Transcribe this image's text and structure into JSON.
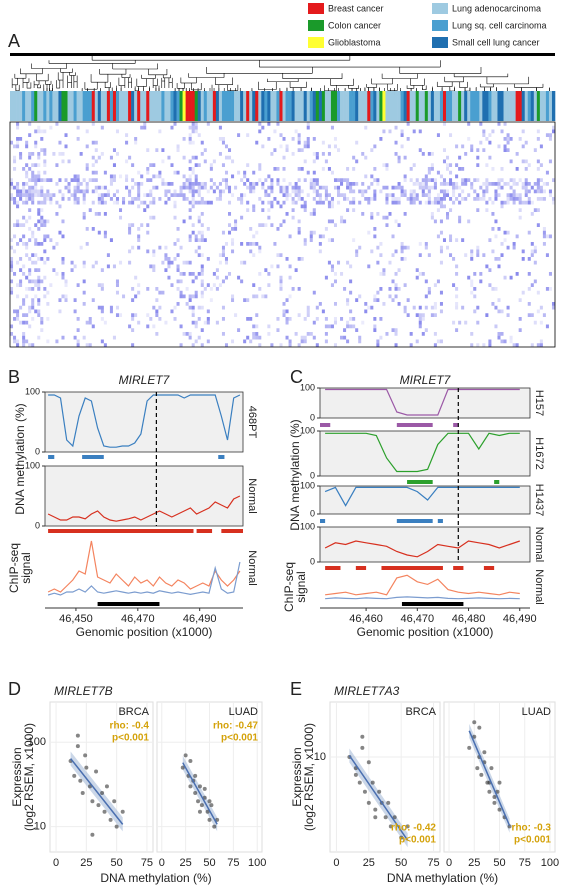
{
  "chart_data": [
    {
      "type": "heatmap",
      "panel": "A",
      "legend": [
        {
          "name": "Breast cancer",
          "color": "#e41a1c"
        },
        {
          "name": "Colon cancer",
          "color": "#1a9a2a"
        },
        {
          "name": "Glioblastoma",
          "color": "#ffff33"
        },
        {
          "name": "Lung adenocarcinoma",
          "color": "#9ecae1"
        },
        {
          "name": "Lung sq. cell carcinoma",
          "color": "#4a9fd0"
        },
        {
          "name": "Small cell lung cancer",
          "color": "#1f6fb0"
        }
      ]
    },
    {
      "type": "tracks",
      "panel": "B",
      "title": "MIRLET7",
      "ylabel": "DNA methylation (%)",
      "chip_label": [
        "ChIP-seq",
        "signal"
      ],
      "xlabel": "Genomic position (x1000)",
      "xlim": [
        46440,
        46504
      ],
      "xticks": [
        {
          "value": 46450,
          "label": "46,450"
        },
        {
          "value": 46470,
          "label": "46,470"
        },
        {
          "value": 46490,
          "label": "46,490"
        }
      ],
      "ylim": [
        0,
        100
      ],
      "yticks": [
        0,
        100
      ],
      "dashed_x": 46476,
      "x": [
        46441,
        46443,
        46445,
        46447,
        46449,
        46451,
        46453,
        46455,
        46457,
        46459,
        46461,
        46463,
        46465,
        46467,
        46469,
        46471,
        46473,
        46475,
        46477,
        46479,
        46481,
        46483,
        46485,
        46487,
        46489,
        46491,
        46493,
        46495,
        46497,
        46499,
        46501,
        46503
      ],
      "tracks": [
        {
          "name": "468PT",
          "color": "#3a7fc0",
          "values": [
            95,
            95,
            90,
            20,
            10,
            60,
            90,
            85,
            40,
            10,
            8,
            8,
            10,
            10,
            15,
            30,
            85,
            95,
            95,
            95,
            95,
            95,
            90,
            95,
            95,
            95,
            95,
            95,
            60,
            20,
            90,
            95
          ],
          "regions": [
            [
              46441,
              46443
            ],
            [
              46452,
              46459
            ],
            [
              46496,
              46498
            ]
          ]
        },
        {
          "name": "Normal",
          "color": "#d7301f",
          "values": [
            20,
            15,
            10,
            10,
            15,
            15,
            12,
            20,
            25,
            15,
            10,
            8,
            10,
            12,
            15,
            10,
            15,
            20,
            25,
            20,
            15,
            20,
            25,
            30,
            20,
            25,
            30,
            40,
            35,
            30,
            45,
            50
          ],
          "regions": [
            [
              46441,
              46488
            ],
            [
              46489,
              46494
            ],
            [
              46497,
              46504
            ]
          ]
        }
      ],
      "chip": {
        "name": "Normal",
        "region": [
          46457,
          46477
        ],
        "series": [
          {
            "color": "#f4845f",
            "values": [
              10,
              15,
              10,
              20,
              30,
              45,
              40,
              95,
              35,
              30,
              25,
              40,
              30,
              20,
              35,
              25,
              30,
              20,
              35,
              25,
              20,
              30,
              25,
              15,
              20,
              25,
              20,
              45,
              30,
              20,
              30,
              45
            ]
          },
          {
            "color": "#7b9ccf",
            "values": [
              5,
              8,
              5,
              10,
              10,
              15,
              10,
              20,
              10,
              8,
              10,
              12,
              10,
              8,
              10,
              8,
              10,
              8,
              12,
              10,
              8,
              10,
              8,
              6,
              8,
              10,
              8,
              50,
              15,
              8,
              10,
              60
            ]
          }
        ]
      }
    },
    {
      "type": "tracks",
      "panel": "C",
      "title": "MIRLET7",
      "ylabel": "DNA methylation (%)",
      "chip_label": [
        "ChIP-seq",
        "signal"
      ],
      "xlabel": "Genomic position (x1000)",
      "xlim": [
        46451,
        46492
      ],
      "xticks": [
        {
          "value": 46460,
          "label": "46,460"
        },
        {
          "value": 46470,
          "label": "46,470"
        },
        {
          "value": 46480,
          "label": "46,480"
        },
        {
          "value": 46490,
          "label": "46,490"
        }
      ],
      "ylim": [
        0,
        100
      ],
      "yticks": [
        0,
        100
      ],
      "dashed_x": 46478,
      "x": [
        46452,
        46454,
        46456,
        46458,
        46460,
        46462,
        46464,
        46466,
        46468,
        46470,
        46472,
        46474,
        46476,
        46478,
        46480,
        46482,
        46484,
        46486,
        46488,
        46490
      ],
      "tracks": [
        {
          "name": "H157",
          "color": "#9b59a6",
          "values": [
            95,
            95,
            95,
            95,
            95,
            95,
            95,
            20,
            10,
            10,
            10,
            10,
            95,
            95,
            95,
            95,
            95,
            95,
            95,
            95
          ],
          "regions": [
            [
              46451,
              46453
            ],
            [
              46466,
              46473
            ],
            [
              46477,
              46478
            ]
          ]
        },
        {
          "name": "H1672",
          "color": "#2ca02c",
          "values": [
            95,
            95,
            95,
            95,
            95,
            90,
            40,
            10,
            10,
            10,
            15,
            70,
            95,
            95,
            95,
            60,
            95,
            90,
            95,
            95
          ],
          "regions": [
            [
              46468,
              46473
            ],
            [
              46485,
              46486
            ]
          ]
        },
        {
          "name": "H1437",
          "color": "#3a7fc0",
          "values": [
            80,
            95,
            30,
            95,
            95,
            95,
            95,
            95,
            95,
            80,
            50,
            95,
            95,
            95,
            95,
            95,
            95,
            95,
            95,
            95
          ],
          "regions": [
            [
              46451,
              46452
            ],
            [
              46466,
              46473
            ],
            [
              46474,
              46475
            ]
          ]
        },
        {
          "name": "Normal",
          "color": "#d7301f",
          "values": [
            40,
            55,
            50,
            60,
            55,
            50,
            45,
            30,
            20,
            15,
            30,
            50,
            45,
            40,
            60,
            55,
            50,
            40,
            50,
            60
          ],
          "regions": [
            [
              46452,
              46455
            ],
            [
              46458,
              46460
            ],
            [
              46463,
              46475
            ],
            [
              46477,
              46479
            ],
            [
              46483,
              46485
            ]
          ]
        }
      ],
      "chip": {
        "name": "Normal",
        "region": [
          46467,
          46479
        ],
        "series": [
          {
            "color": "#f4845f",
            "values": [
              20,
              25,
              30,
              20,
              25,
              30,
              20,
              85,
              95,
              70,
              60,
              80,
              40,
              30,
              25,
              30,
              25,
              20,
              30,
              25
            ]
          },
          {
            "color": "#7b9ccf",
            "values": [
              5,
              8,
              6,
              5,
              8,
              6,
              5,
              10,
              12,
              10,
              8,
              10,
              6,
              5,
              6,
              8,
              6,
              5,
              6,
              5
            ]
          }
        ]
      }
    },
    {
      "type": "scatter",
      "panel": "D",
      "title": "MIRLET7B",
      "ylabel": [
        "Expression",
        "(log2 RSEM, x1000)"
      ],
      "xlabel": "DNA methylation (%)",
      "ylim": [
        5,
        300
      ],
      "yticks": [
        10,
        100
      ],
      "log_y": true,
      "annotation_corner": "top-right",
      "facets": [
        {
          "name": "BRCA",
          "xlim": [
            -5,
            80
          ],
          "xticks": [
            0,
            25,
            50,
            75
          ],
          "annotation": [
            "rho: -0.4",
            "p<0.001"
          ],
          "x": [
            12,
            15,
            18,
            20,
            22,
            25,
            28,
            30,
            33,
            35,
            38,
            40,
            42,
            45,
            48,
            50,
            55,
            18,
            24,
            30
          ],
          "values": [
            60,
            40,
            90,
            35,
            25,
            50,
            30,
            20,
            45,
            18,
            25,
            15,
            30,
            12,
            20,
            10,
            15,
            120,
            70,
            8
          ]
        },
        {
          "name": "LUAD",
          "xlim": [
            -5,
            105
          ],
          "xticks": [
            0,
            25,
            50,
            75,
            100
          ],
          "annotation": [
            "rho: -0.47",
            "p<0.001"
          ],
          "x": [
            22,
            28,
            30,
            33,
            35,
            38,
            40,
            42,
            45,
            48,
            50,
            52,
            55,
            58,
            35,
            40,
            45,
            30,
            50,
            25
          ],
          "values": [
            50,
            40,
            30,
            35,
            25,
            20,
            30,
            18,
            22,
            15,
            12,
            18,
            10,
            12,
            40,
            15,
            28,
            60,
            20,
            70
          ]
        }
      ]
    },
    {
      "type": "scatter",
      "panel": "E",
      "title": "MIRLET7A3",
      "ylabel": [
        "Expression",
        "(log2 RSEM, x1000)"
      ],
      "xlabel": "DNA methylation (%)",
      "ylim": [
        1.5,
        30
      ],
      "yticks": [
        10
      ],
      "log_y": true,
      "annotation_corner": "bottom-right",
      "facets": [
        {
          "name": "BRCA",
          "xlim": [
            -5,
            80
          ],
          "xticks": [
            0,
            25,
            50,
            75
          ],
          "annotation": [
            "rho: -0.42",
            "p<0.001"
          ],
          "x": [
            10,
            15,
            18,
            20,
            22,
            25,
            28,
            30,
            33,
            35,
            38,
            40,
            42,
            45,
            50,
            55,
            20,
            25,
            15,
            30
          ],
          "values": [
            10,
            8,
            6,
            12,
            5,
            4,
            6,
            3,
            5,
            4,
            3,
            4,
            2.5,
            3,
            2,
            2.5,
            15,
            9,
            7,
            3.5
          ]
        },
        {
          "name": "LUAD",
          "xlim": [
            -5,
            105
          ],
          "xticks": [
            0,
            25,
            50,
            75,
            100
          ],
          "annotation": [
            "rho: -0.3",
            "p<0.001"
          ],
          "x": [
            20,
            25,
            28,
            30,
            32,
            35,
            38,
            40,
            42,
            45,
            48,
            50,
            55,
            30,
            35,
            40,
            25,
            45,
            50,
            60
          ],
          "values": [
            12,
            15,
            8,
            10,
            7,
            9,
            6,
            5,
            8,
            4,
            5,
            3.5,
            3,
            18,
            11,
            6,
            20,
            4.5,
            6,
            2.5
          ]
        }
      ]
    }
  ]
}
